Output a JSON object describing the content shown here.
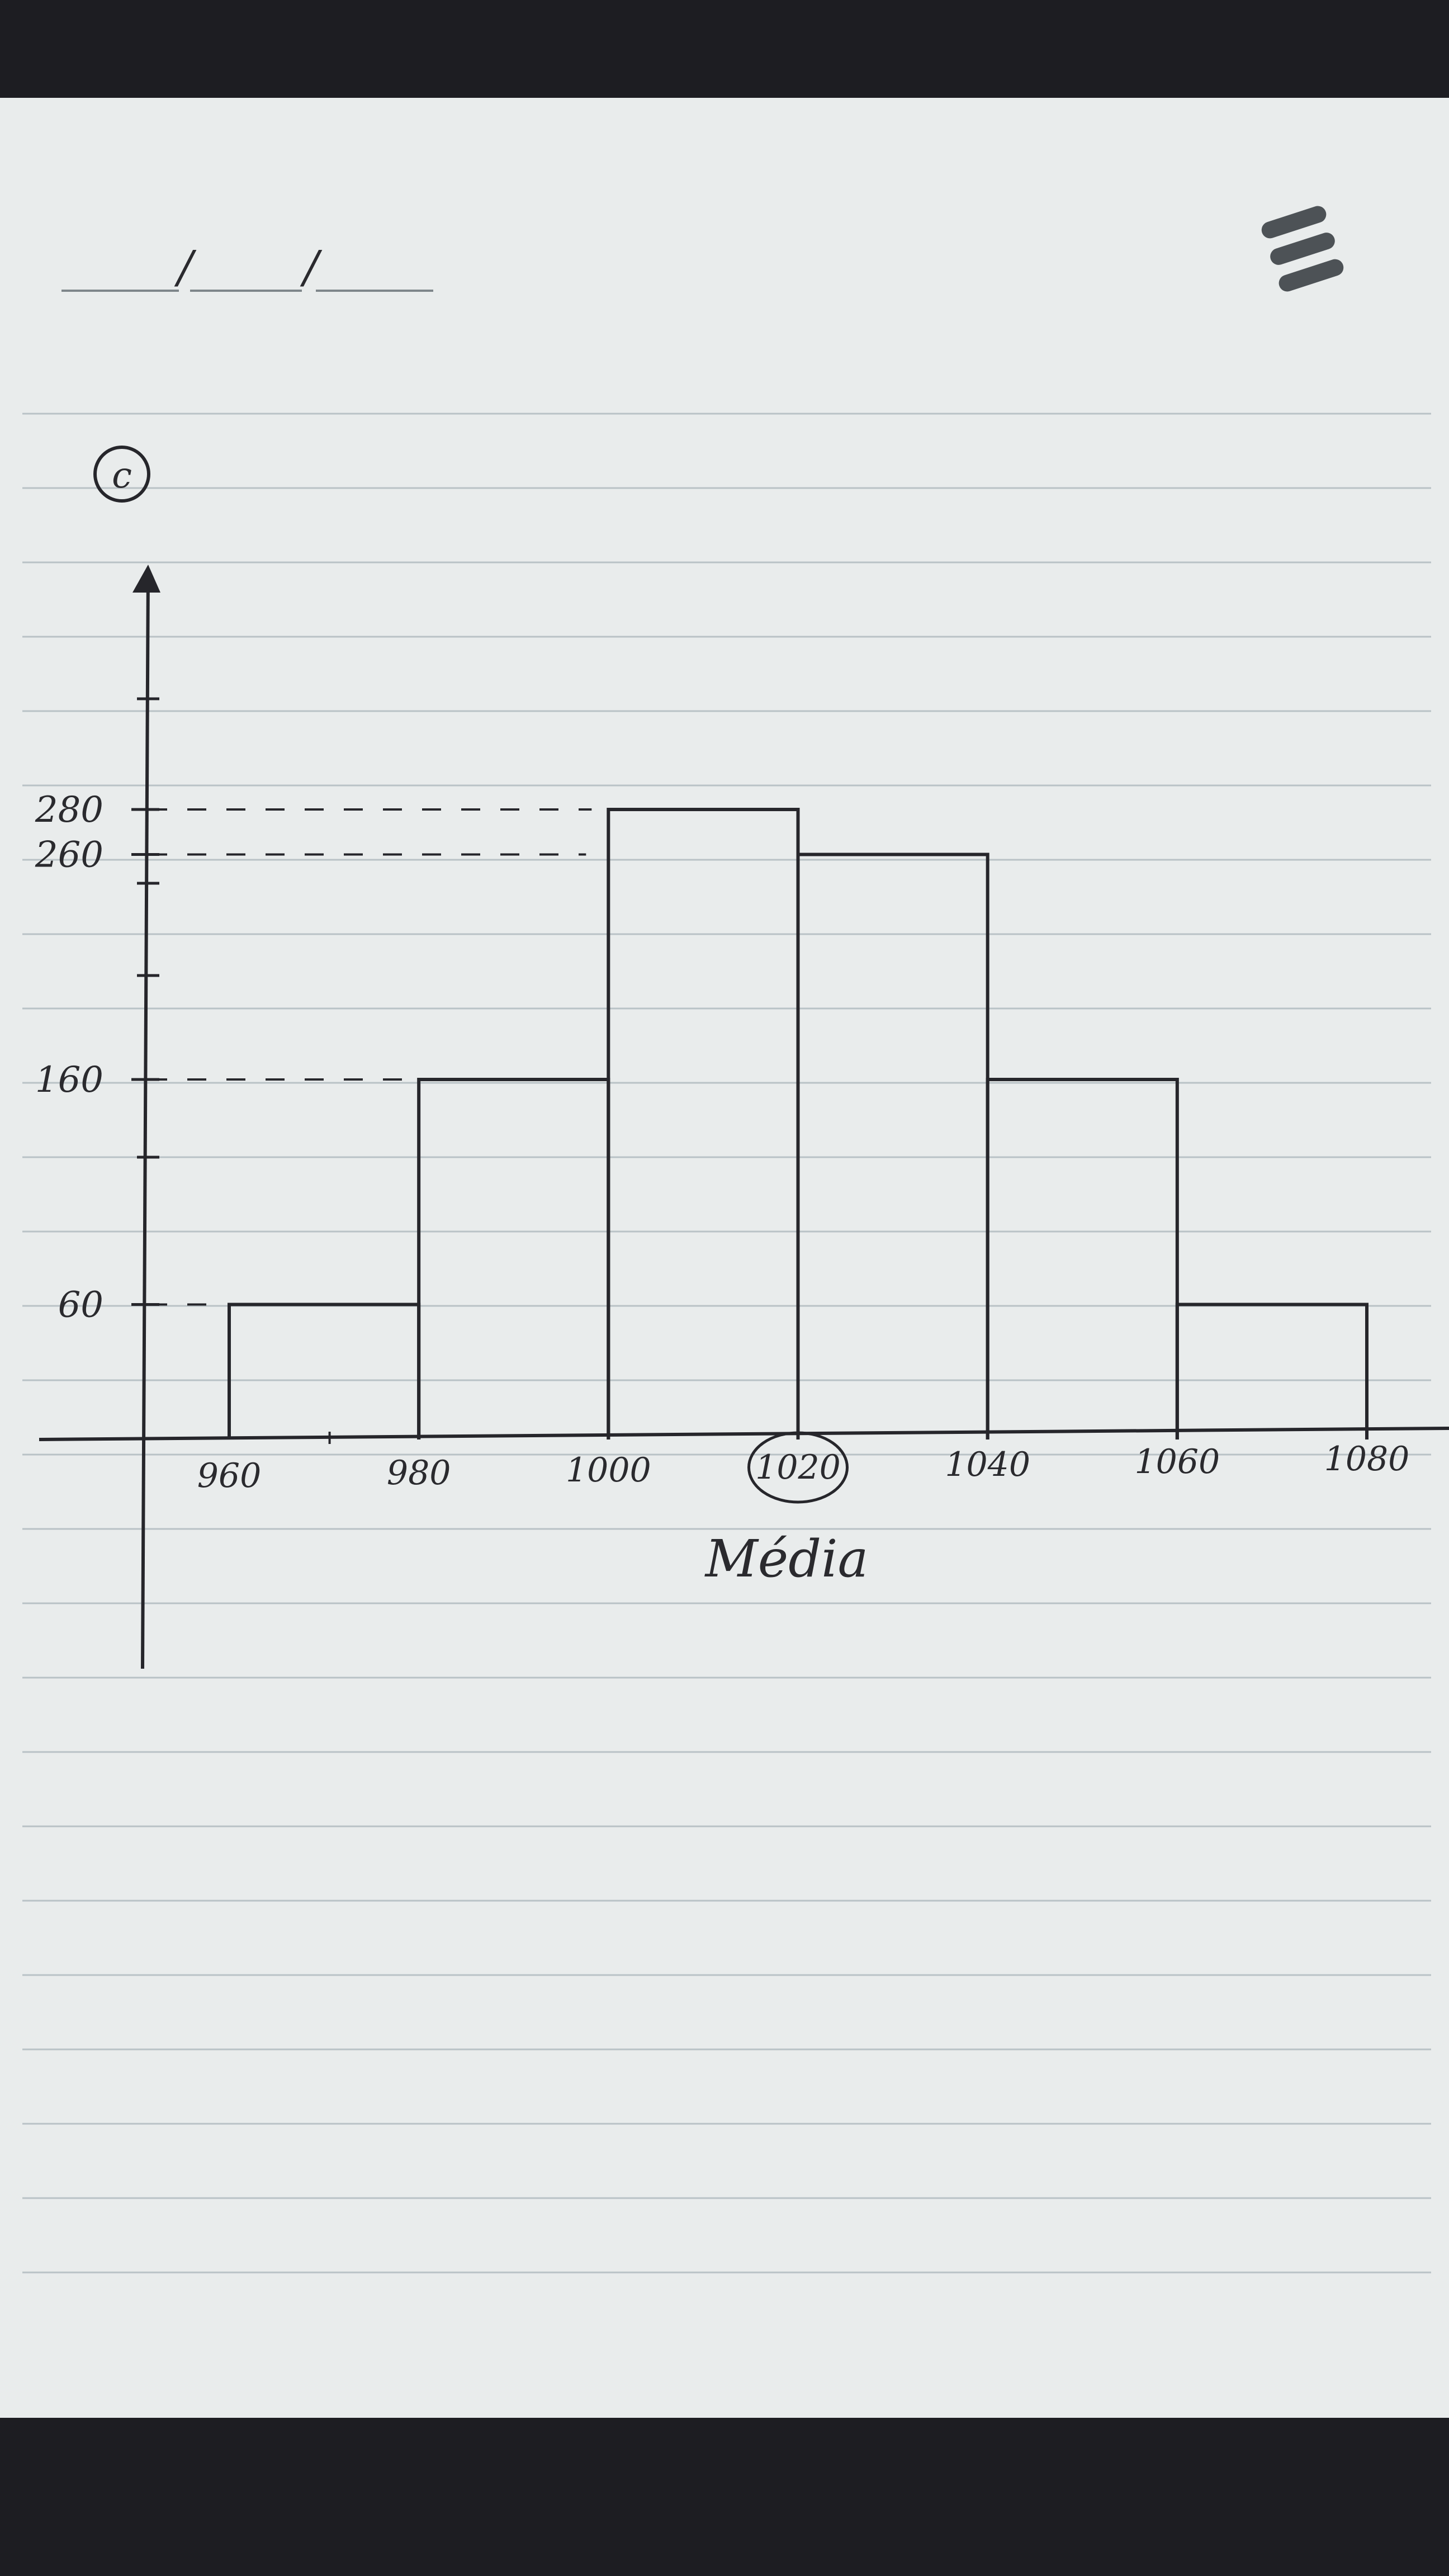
{
  "page": {
    "paper_color": "#e9ecec",
    "rule_color": "#b9c2c6",
    "ink_color": "#26262b",
    "background_color": "#1d1d22"
  },
  "header": {
    "date_separators": [
      "/",
      "/"
    ],
    "brand_mark_icon": "stacked-bars-logo"
  },
  "question_label": "c",
  "chart_data": {
    "type": "bar",
    "chart_kind": "histogram",
    "bins": [
      {
        "from": 960,
        "to": 980,
        "value": 60
      },
      {
        "from": 980,
        "to": 1000,
        "value": 160
      },
      {
        "from": 1000,
        "to": 1020,
        "value": 280
      },
      {
        "from": 1020,
        "to": 1040,
        "value": 260
      },
      {
        "from": 1040,
        "to": 1060,
        "value": 160
      },
      {
        "from": 1060,
        "to": 1080,
        "value": 60
      }
    ],
    "x_tick_labels": [
      "960",
      "980",
      "1000",
      "1020",
      "1040",
      "1060",
      "1080"
    ],
    "x_ticks": [
      960,
      980,
      1000,
      1020,
      1040,
      1060,
      1080
    ],
    "circled_tick": "1020",
    "y_tick_labels": [
      {
        "value": 60,
        "label": "60"
      },
      {
        "value": 160,
        "label": "160"
      },
      {
        "value": 260,
        "label": "260"
      },
      {
        "value": 280,
        "label": "280"
      }
    ],
    "xlabel": "Média",
    "ylabel": "",
    "title": "",
    "xlim": [
      950,
      1080
    ],
    "ylim": [
      0,
      330
    ],
    "grid": false,
    "dashed_guides": true,
    "legend": "none"
  }
}
